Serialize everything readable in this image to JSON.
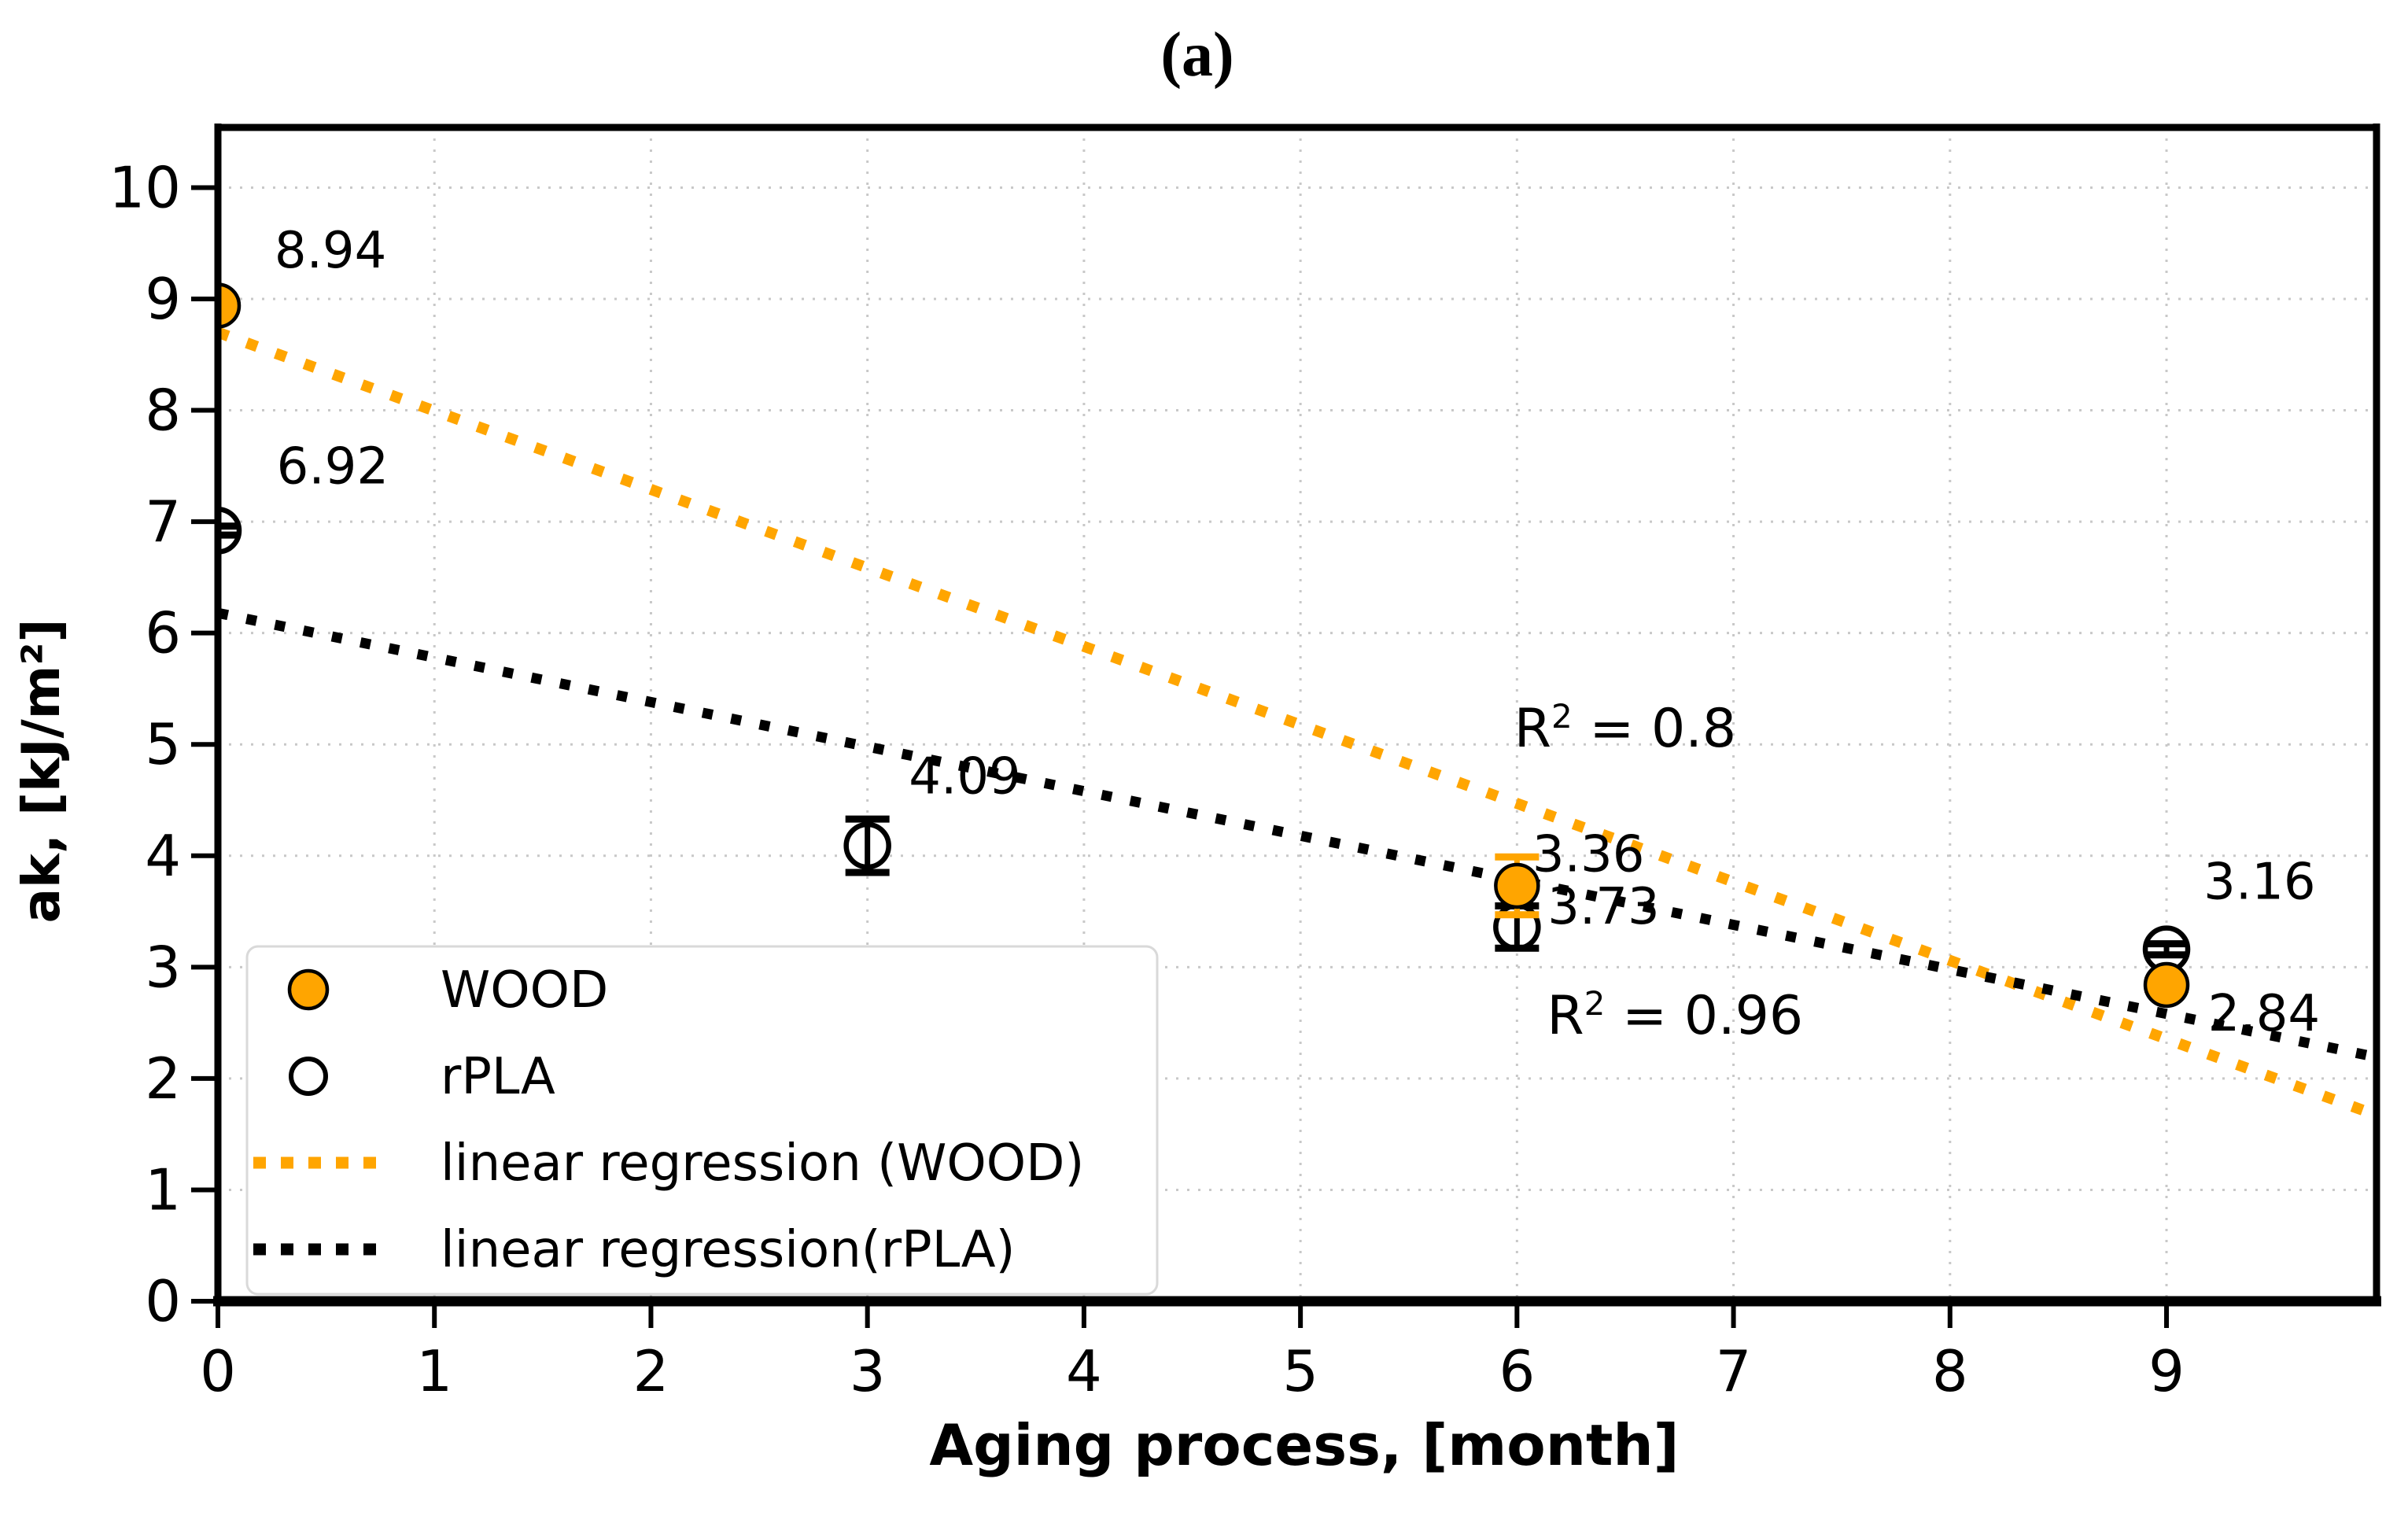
{
  "figure": {
    "panel_label": "(a)"
  },
  "colors": {
    "wood_orange": "#FFA500",
    "rpla_black": "#000000",
    "grid_gray": "#c8c8c8",
    "legend_border": "#d9d9d9",
    "background": "#ffffff"
  },
  "chart_data": {
    "type": "scatter",
    "title": "(a)",
    "xlabel": "Aging process, [month]",
    "ylabel": "ak, [kJ/m²]",
    "xlim": [
      0,
      9.97
    ],
    "ylim": [
      0,
      10.54
    ],
    "xticks": [
      0,
      1,
      2,
      3,
      4,
      5,
      6,
      7,
      8,
      9
    ],
    "yticks": [
      0,
      1,
      2,
      3,
      4,
      5,
      6,
      7,
      8,
      9,
      10
    ],
    "grid": true,
    "legend_position": "lower-left",
    "series": [
      {
        "name": "WOOD",
        "marker": "filled-circle",
        "fill": "#FFA500",
        "edge": "#000000",
        "points": [
          {
            "x": 0,
            "y": 8.94,
            "yerr": 0.04,
            "label": "8.94"
          },
          {
            "x": 6,
            "y": 3.73,
            "yerr": 0.26,
            "label": "3.73"
          },
          {
            "x": 9,
            "y": 2.84,
            "yerr": 0.04,
            "label": "2.84"
          }
        ]
      },
      {
        "name": "rPLA",
        "marker": "open-circle",
        "fill": "#ffffff",
        "edge": "#000000",
        "points": [
          {
            "x": 0,
            "y": 6.92,
            "yerr": 0.04,
            "label": "6.92"
          },
          {
            "x": 3,
            "y": 4.09,
            "yerr": 0.24,
            "label": "4.09"
          },
          {
            "x": 6,
            "y": 3.36,
            "yerr": 0.19,
            "label": "3.36"
          },
          {
            "x": 9,
            "y": 3.16,
            "yerr": 0.05,
            "label": "3.16"
          }
        ]
      }
    ],
    "regression_lines": [
      {
        "name": "linear regression (WOOD)",
        "color": "#FFA500",
        "y_at_x0": 8.7,
        "slope": -0.705,
        "r2": "R² = 0.8"
      },
      {
        "name": "linear regression(rPLA)",
        "color": "#000000",
        "y_at_x0": 6.18,
        "slope": -0.4,
        "r2": "R² = 0.96"
      }
    ],
    "annotations": [
      {
        "text": "8.94",
        "x": 0.52,
        "y": 9.44,
        "kind": "value"
      },
      {
        "text": "6.92",
        "x": 0.53,
        "y": 7.5,
        "kind": "value"
      },
      {
        "text": "4.09",
        "x": 3.45,
        "y": 4.72,
        "kind": "value"
      },
      {
        "text": "3.36",
        "x": 6.33,
        "y": 4.02,
        "kind": "value"
      },
      {
        "text": "3.73",
        "x": 6.4,
        "y": 3.55,
        "kind": "value"
      },
      {
        "text": "3.16",
        "x": 9.43,
        "y": 3.77,
        "kind": "value"
      },
      {
        "text": "2.84",
        "x": 9.45,
        "y": 2.59,
        "kind": "value"
      },
      {
        "text": "R² = 0.8",
        "x": 6.5,
        "y": 5.15,
        "kind": "r2"
      },
      {
        "text": "R² = 0.96",
        "x": 6.73,
        "y": 2.57,
        "kind": "r2"
      }
    ],
    "legend": {
      "items": [
        {
          "label": "WOOD",
          "swatch": "filled-circle",
          "color": "#FFA500"
        },
        {
          "label": "rPLA",
          "swatch": "open-circle",
          "color": "#000000"
        },
        {
          "label": "linear regression (WOOD)",
          "swatch": "dotted-line",
          "color": "#FFA500"
        },
        {
          "label": "linear regression(rPLA)",
          "swatch": "dotted-line",
          "color": "#000000"
        }
      ]
    }
  }
}
